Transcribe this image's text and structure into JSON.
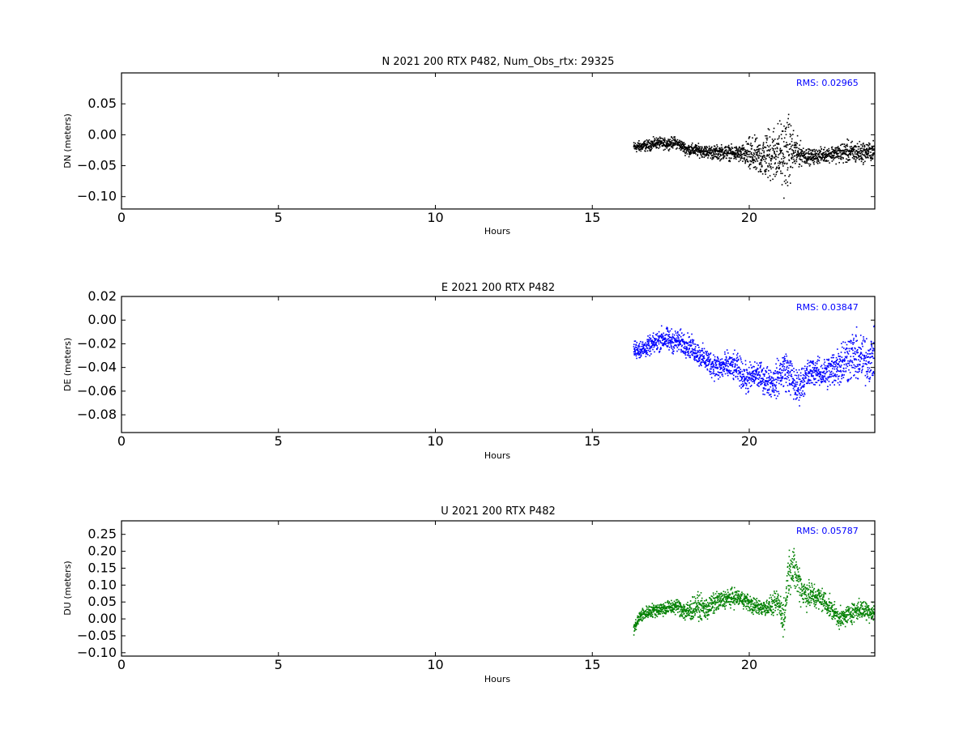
{
  "chart_data": [
    {
      "type": "scatter",
      "title": "N 2021 200 RTX  P482, Num_Obs_rtx: 29325",
      "xlabel": "Hours",
      "ylabel": "DN (meters)",
      "xlim": [
        0,
        24
      ],
      "ylim": [
        -0.12,
        0.1
      ],
      "x_ticks": [
        0,
        5,
        10,
        15,
        20
      ],
      "x_tick_labels": [
        "0",
        "5",
        "10",
        "15",
        "20"
      ],
      "y_ticks": [
        -0.1,
        -0.05,
        0.0,
        0.05
      ],
      "y_tick_labels": [
        "−0.10",
        "−0.05",
        "0.00",
        "0.05"
      ],
      "annotation": "RMS:  0.02965",
      "color": "#000000",
      "series": [
        {
          "x": [
            16.3,
            16.5,
            16.8,
            17.0,
            17.3,
            17.6,
            17.8,
            18.0,
            18.3,
            18.6,
            18.9,
            19.2,
            19.5,
            19.8,
            20.0,
            20.3,
            20.6,
            20.9,
            21.1,
            21.2,
            21.3,
            21.5,
            21.7,
            21.9,
            22.2,
            22.5,
            22.8,
            23.1,
            23.4,
            23.7,
            24.0
          ],
          "y": [
            -0.019,
            -0.018,
            -0.016,
            -0.012,
            -0.014,
            -0.011,
            -0.016,
            -0.023,
            -0.024,
            -0.026,
            -0.028,
            -0.027,
            -0.029,
            -0.031,
            -0.033,
            -0.036,
            -0.031,
            -0.028,
            -0.032,
            -0.026,
            -0.025,
            -0.029,
            -0.031,
            -0.035,
            -0.033,
            -0.03,
            -0.029,
            -0.027,
            -0.028,
            -0.027,
            -0.025
          ],
          "spread": [
            0.009,
            0.009,
            0.009,
            0.009,
            0.009,
            0.009,
            0.009,
            0.01,
            0.01,
            0.01,
            0.012,
            0.012,
            0.012,
            0.016,
            0.03,
            0.03,
            0.045,
            0.05,
            0.06,
            0.065,
            0.045,
            0.025,
            0.015,
            0.012,
            0.012,
            0.012,
            0.015,
            0.018,
            0.018,
            0.016,
            0.016
          ]
        }
      ]
    },
    {
      "type": "scatter",
      "title": "E 2021 200 RTX  P482",
      "xlabel": "Hours",
      "ylabel": "DE (meters)",
      "xlim": [
        0,
        24
      ],
      "ylim": [
        -0.095,
        0.02
      ],
      "x_ticks": [
        0,
        5,
        10,
        15,
        20
      ],
      "x_tick_labels": [
        "0",
        "5",
        "10",
        "15",
        "20"
      ],
      "y_ticks": [
        -0.08,
        -0.06,
        -0.04,
        -0.02,
        0.0,
        0.02
      ],
      "y_tick_labels": [
        "−0.08",
        "−0.06",
        "−0.04",
        "−0.02",
        "0.00",
        "0.02"
      ],
      "annotation": "RMS:  0.03847",
      "color": "#0000ff",
      "series": [
        {
          "x": [
            16.3,
            16.6,
            16.9,
            17.2,
            17.5,
            17.8,
            18.1,
            18.4,
            18.7,
            19.0,
            19.3,
            19.6,
            19.9,
            20.2,
            20.5,
            20.8,
            21.1,
            21.3,
            21.5,
            21.7,
            22.0,
            22.3,
            22.6,
            22.9,
            23.2,
            23.5,
            23.8,
            24.0
          ],
          "y": [
            -0.024,
            -0.024,
            -0.02,
            -0.015,
            -0.017,
            -0.018,
            -0.022,
            -0.029,
            -0.035,
            -0.04,
            -0.038,
            -0.04,
            -0.05,
            -0.045,
            -0.05,
            -0.052,
            -0.04,
            -0.047,
            -0.058,
            -0.05,
            -0.042,
            -0.045,
            -0.042,
            -0.035,
            -0.03,
            -0.032,
            -0.033,
            -0.028
          ],
          "spread": [
            0.008,
            0.008,
            0.008,
            0.01,
            0.01,
            0.01,
            0.01,
            0.01,
            0.011,
            0.012,
            0.012,
            0.012,
            0.013,
            0.012,
            0.012,
            0.014,
            0.018,
            0.016,
            0.016,
            0.014,
            0.012,
            0.012,
            0.016,
            0.02,
            0.022,
            0.022,
            0.02,
            0.02
          ]
        }
      ]
    },
    {
      "type": "scatter",
      "title": "U 2021 200 RTX  P482",
      "xlabel": "Hours",
      "ylabel": "DU (meters)",
      "xlim": [
        0,
        24
      ],
      "ylim": [
        -0.11,
        0.29
      ],
      "x_ticks": [
        0,
        5,
        10,
        15,
        20
      ],
      "x_tick_labels": [
        "0",
        "5",
        "10",
        "15",
        "20"
      ],
      "y_ticks": [
        -0.1,
        -0.05,
        0.0,
        0.05,
        0.1,
        0.15,
        0.2,
        0.25
      ],
      "y_tick_labels": [
        "−0.10",
        "−0.05",
        "0.00",
        "0.05",
        "0.10",
        "0.15",
        "0.20",
        "0.25"
      ],
      "annotation": "RMS:  0.05787",
      "color": "#008000",
      "series": [
        {
          "x": [
            16.3,
            16.5,
            16.8,
            17.1,
            17.4,
            17.7,
            18.0,
            18.3,
            18.6,
            18.9,
            19.2,
            19.5,
            19.8,
            20.1,
            20.4,
            20.7,
            20.9,
            21.1,
            21.2,
            21.3,
            21.5,
            21.7,
            22.0,
            22.3,
            22.6,
            22.9,
            23.2,
            23.5,
            23.8,
            24.0
          ],
          "y": [
            -0.03,
            0.01,
            0.025,
            0.03,
            0.035,
            0.04,
            0.02,
            0.04,
            0.03,
            0.05,
            0.06,
            0.065,
            0.06,
            0.04,
            0.035,
            0.04,
            0.05,
            0.0,
            0.12,
            0.16,
            0.13,
            0.08,
            0.07,
            0.06,
            0.03,
            0.0,
            0.02,
            0.03,
            0.025,
            0.02
          ],
          "spread": [
            0.02,
            0.02,
            0.02,
            0.022,
            0.022,
            0.022,
            0.035,
            0.035,
            0.035,
            0.03,
            0.028,
            0.028,
            0.025,
            0.025,
            0.025,
            0.028,
            0.04,
            0.06,
            0.06,
            0.07,
            0.06,
            0.05,
            0.04,
            0.035,
            0.03,
            0.03,
            0.03,
            0.03,
            0.03,
            0.03
          ]
        }
      ]
    }
  ]
}
